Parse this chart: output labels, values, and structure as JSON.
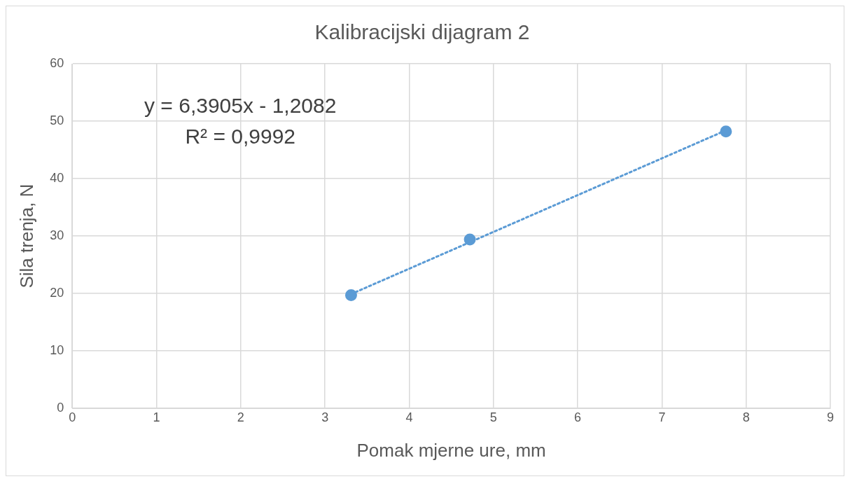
{
  "chart_data": {
    "type": "scatter",
    "title": "Kalibracijski dijagram 2",
    "xlabel": "Pomak mjerne ure, mm",
    "ylabel": "Sila trenja, N",
    "series": [
      {
        "color": "#5b9bd5",
        "x": [
          3.31,
          4.72,
          7.76
        ],
        "values": [
          19.7,
          29.4,
          48.2
        ],
        "marker": "circle"
      },
      {
        "type": "line",
        "color": "#5b9bd5",
        "x": [
          3.31,
          7.76
        ],
        "values": [
          19.9,
          48.4
        ],
        "marker": "none",
        "line_style": "dotted"
      }
    ],
    "annotations": [
      "y = 6,3905x - 1,2082",
      "R² = 0,9992"
    ],
    "xlim": [
      0,
      9
    ],
    "xticks": [
      0,
      1,
      2,
      3,
      4,
      5,
      6,
      7,
      8,
      9
    ],
    "ylim": [
      0,
      60
    ],
    "yticks": [
      0,
      10,
      20,
      30,
      40,
      50,
      60
    ],
    "grid": true,
    "legend": false
  }
}
